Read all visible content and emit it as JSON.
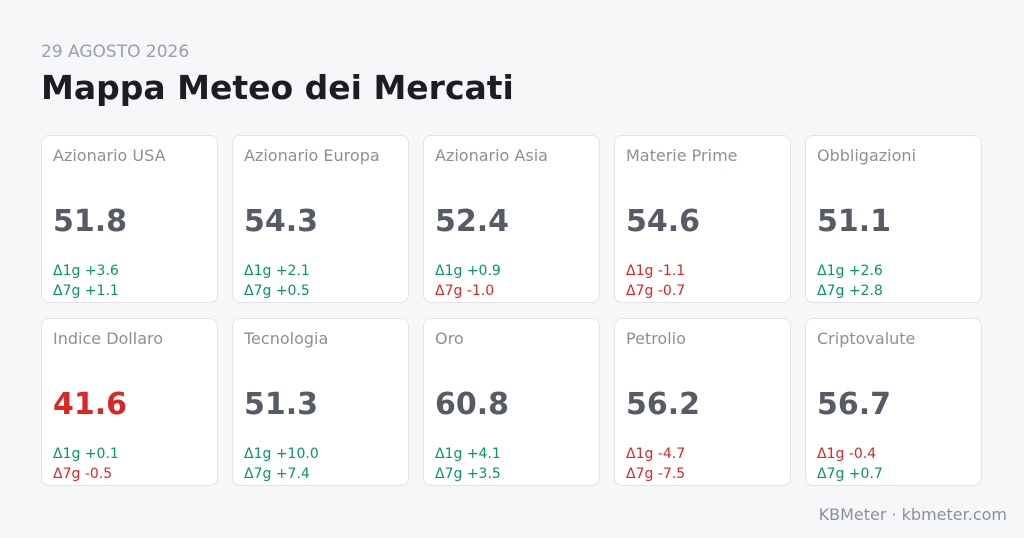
{
  "header": {
    "date": "29 AGOSTO 2026",
    "title": "Mappa Meteo dei Mercati"
  },
  "cards": [
    {
      "name": "Azionario USA",
      "value": 51.8,
      "d1": "Δ1g +3.6",
      "d7": "Δ7g +1.1"
    },
    {
      "name": "Azionario Europa",
      "value": 54.3,
      "d1": "Δ1g +2.1",
      "d7": "Δ7g +0.5"
    },
    {
      "name": "Azionario Asia",
      "value": 52.4,
      "d1": "Δ1g +0.9",
      "d7": "Δ7g -1.0"
    },
    {
      "name": "Materie Prime",
      "value": 54.6,
      "d1": "Δ1g -1.1",
      "d7": "Δ7g -0.7"
    },
    {
      "name": "Obbligazioni",
      "value": 51.1,
      "d1": "Δ1g +2.6",
      "d7": "Δ7g +2.8"
    },
    {
      "name": "Indice Dollaro",
      "value": 41.6,
      "d1": "Δ1g +0.1",
      "d7": "Δ7g -0.5",
      "color": "#dc2626"
    },
    {
      "name": "Tecnologia",
      "value": 51.3,
      "d1": "Δ1g +10.0",
      "d7": "Δ7g +7.4"
    },
    {
      "name": "Oro",
      "value": 60.8,
      "d1": "Δ1g +4.1",
      "d7": "Δ7g +3.5"
    },
    {
      "name": "Petrolio",
      "value": 56.2,
      "d1": "Δ1g -4.7",
      "d7": "Δ7g -7.5"
    },
    {
      "name": "Criptovalute",
      "value": 56.7,
      "d1": "Δ1g -0.4",
      "d7": "Δ7g +0.7"
    }
  ],
  "footer": "KBMeter · kbmeter.com"
}
